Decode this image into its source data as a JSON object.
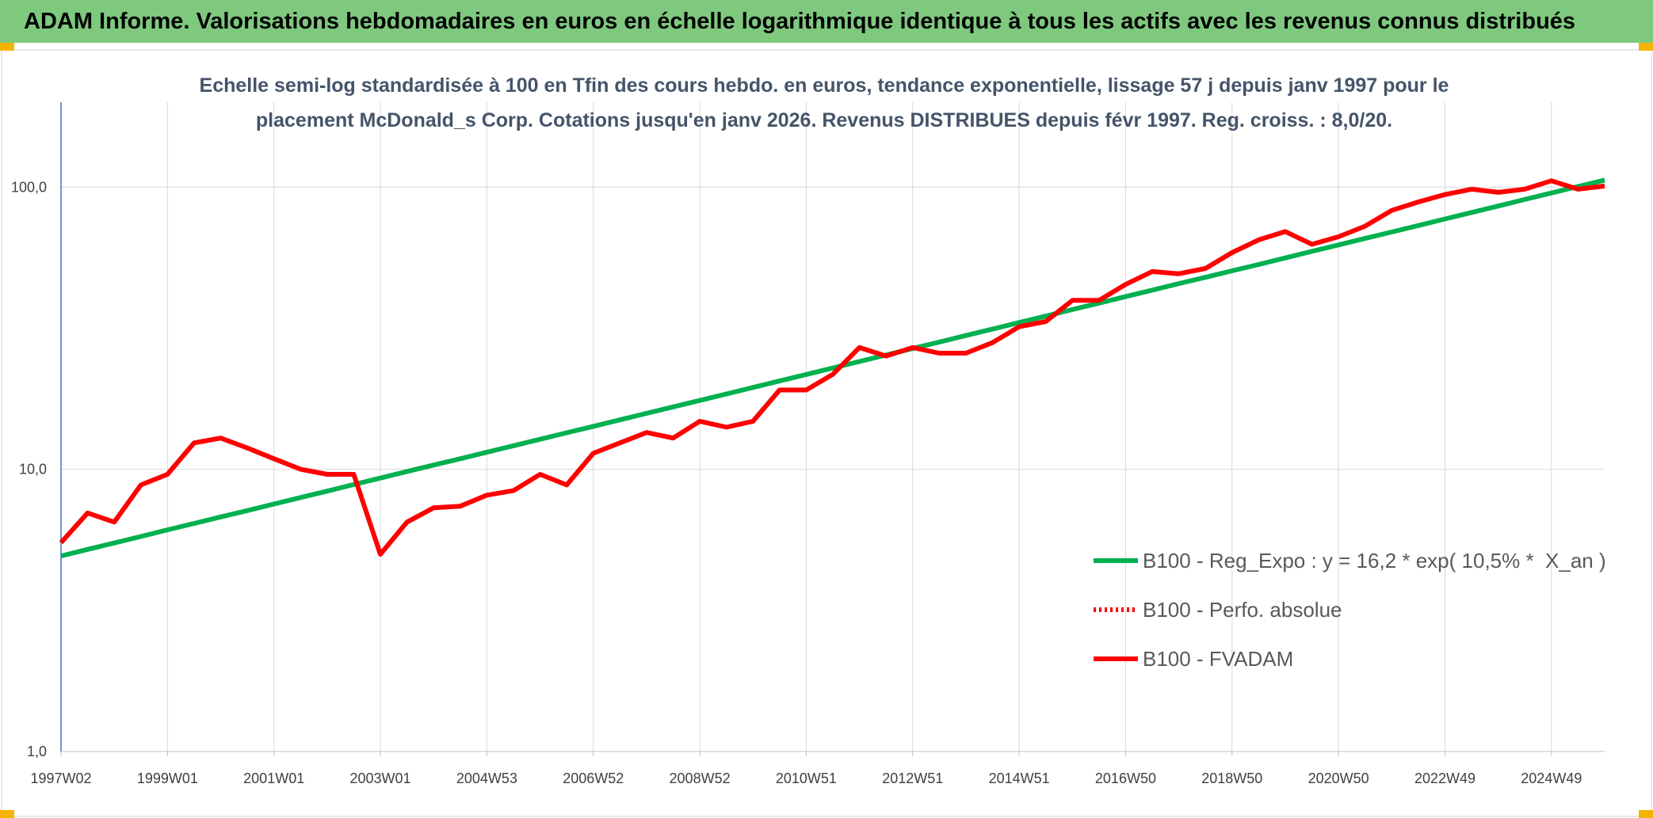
{
  "header": "ADAM Informe. Valorisations hebdomadaires en euros en échelle logarithmique identique à tous les actifs avec les revenus connus distribués",
  "chart_data": {
    "type": "line",
    "subtitle": "Echelle semi-log standardisée à 100 en Tfin des cours hebdo. en euros, tendance exponentielle, lissage 57 j depuis janv 1997 pour le placement McDonald_s Corp. Cotations jusqu'en janv 2026. Revenus DISTRIBUES depuis févr 1997. Reg. croiss. : 8,0/20.",
    "log_y": true,
    "grid": true,
    "legend": "lower right",
    "ylim": [
      1,
      200
    ],
    "yticks": [
      {
        "value": 1,
        "label": "1,0"
      },
      {
        "value": 10,
        "label": "10,0"
      },
      {
        "value": 100,
        "label": "100,0"
      }
    ],
    "categories": [
      "1997W02",
      null,
      null,
      null,
      "1999W01",
      null,
      null,
      null,
      "2001W01",
      null,
      null,
      null,
      "2003W01",
      null,
      null,
      null,
      "2004W53",
      null,
      null,
      null,
      "2006W52",
      null,
      null,
      null,
      "2008W52",
      null,
      null,
      null,
      "2010W51",
      null,
      null,
      null,
      "2012W51",
      null,
      null,
      null,
      "2014W51",
      null,
      null,
      null,
      "2016W50",
      null,
      null,
      null,
      "2018W50",
      null,
      null,
      null,
      "2020W50",
      null,
      null,
      null,
      "2022W49",
      null,
      null,
      null,
      "2024W49",
      null,
      null
    ],
    "series": [
      {
        "name": "B100 - Reg_Expo : y = 16,2 * exp( 10,5% *  X_an )",
        "color": "#00b050",
        "dash": "solid",
        "values": [
          4.93,
          5.2,
          5.48,
          5.78,
          6.1,
          6.43,
          6.78,
          7.14,
          7.53,
          7.94,
          8.37,
          8.83,
          9.31,
          9.82,
          10.35,
          10.9,
          11.49,
          12.12,
          12.78,
          13.47,
          14.2,
          14.97,
          15.78,
          16.64,
          17.54,
          18.49,
          19.5,
          20.56,
          21.68,
          22.86,
          24.1,
          25.41,
          26.79,
          28.24,
          29.78,
          31.4,
          33.11,
          34.91,
          36.81,
          38.81,
          40.92,
          43.14,
          45.5,
          47.9,
          50.5,
          53.2,
          56.1,
          59.2,
          62.4,
          65.8,
          69.3,
          73.1,
          77.1,
          81.3,
          85.7,
          90.4,
          95.3,
          100.5,
          105.9
        ]
      },
      {
        "name": "B100 - Perfo. absolue",
        "color": "#ff0000",
        "dash": "dotted"
      },
      {
        "name": "B100 - FVADAM",
        "color": "#ff0000",
        "dash": "solid",
        "values": [
          5.5,
          7.0,
          6.5,
          8.8,
          9.6,
          12.4,
          12.9,
          11.9,
          10.9,
          10.0,
          9.6,
          9.6,
          5.0,
          6.5,
          7.3,
          7.4,
          8.1,
          8.4,
          9.6,
          8.8,
          11.4,
          12.4,
          13.5,
          12.9,
          14.8,
          14.1,
          14.8,
          19.1,
          19.1,
          21.7,
          27.0,
          25.2,
          27.0,
          25.8,
          25.8,
          28.1,
          32.0,
          33.4,
          39.7,
          39.7,
          45.2,
          50.2,
          49.3,
          51.5,
          58.6,
          65.0,
          69.6,
          62.7,
          66.7,
          72.7,
          82.7,
          88.6,
          94.1,
          98.3,
          95.8,
          98.3,
          105.3,
          98.3,
          100.9
        ]
      }
    ]
  }
}
